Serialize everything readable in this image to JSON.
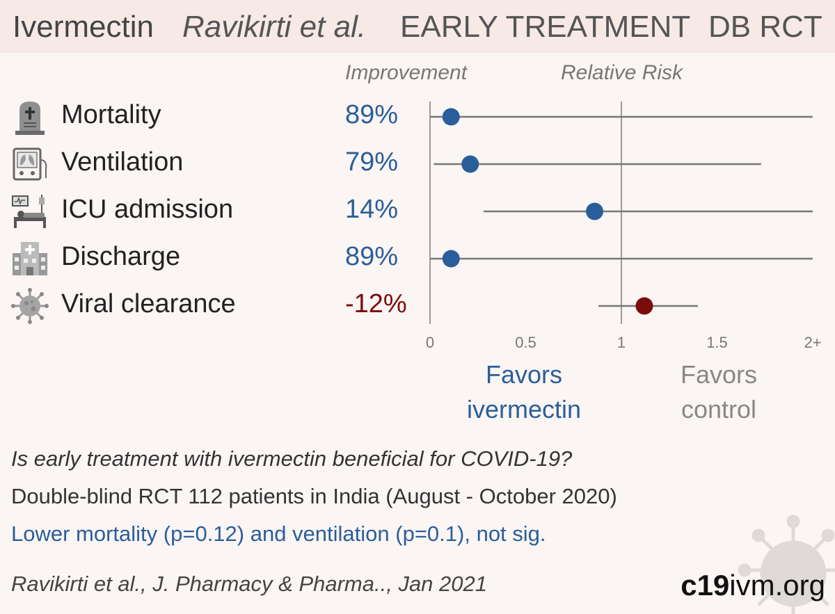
{
  "header": {
    "drug": "Ivermectin",
    "author": "Ravikirti et al.",
    "stage": "EARLY TREATMENT",
    "design": "DB RCT"
  },
  "columns": {
    "improvement": "Improvement",
    "relative_risk": "Relative Risk"
  },
  "outcomes": [
    {
      "name": "Mortality",
      "improvement": "89%",
      "icon": "tombstone-icon"
    },
    {
      "name": "Ventilation",
      "improvement": "79%",
      "icon": "ventilator-icon"
    },
    {
      "name": "ICU admission",
      "improvement": "14%",
      "icon": "icu-bed-icon"
    },
    {
      "name": "Discharge",
      "improvement": "89%",
      "icon": "hospital-icon"
    },
    {
      "name": "Viral clearance",
      "improvement": "-12%",
      "icon": "virus-icon"
    }
  ],
  "chart_data": {
    "type": "scatter",
    "title": "Relative Risk",
    "categories": [
      "Mortality",
      "Ventilation",
      "ICU admission",
      "Discharge",
      "Viral clearance"
    ],
    "values": [
      0.11,
      0.21,
      0.86,
      0.11,
      1.12
    ],
    "ci_low": [
      0.0,
      0.02,
      0.28,
      0.0,
      0.88
    ],
    "ci_high": [
      2.0,
      1.73,
      2.0,
      2.0,
      1.4
    ],
    "xlim": [
      0,
      2
    ],
    "reference_line": 1,
    "xticks": [
      "0",
      "0.5",
      "1",
      "1.5",
      "2+"
    ],
    "left_label": "Favors ivermectin",
    "right_label": "Favors control",
    "colors": {
      "benefit": "#2a5e9a",
      "harm": "#7a0c0c",
      "whisker": "#777777",
      "axis": "#9a9a9a"
    }
  },
  "favors": {
    "left_line1": "Favors",
    "left_line2": "ivermectin",
    "right_line1": "Favors",
    "right_line2": "control"
  },
  "summary": {
    "question": "Is early treatment with ivermectin beneficial for COVID-19?",
    "design": "Double-blind RCT 112 patients in India (August - October 2020)",
    "result": "Lower mortality (p=0.12) and ventilation (p=0.1), not sig."
  },
  "citation": "Ravikirti et al., J. Pharmacy & Pharma.., Jan 2021",
  "site": {
    "bold": "c19",
    "rest": "ivm.org"
  },
  "colors": {
    "positive": "#2a5e9a",
    "negative": "#7a0c0c",
    "header_bg": "#f6e9e6",
    "page_bg": "#fbf5f4"
  }
}
